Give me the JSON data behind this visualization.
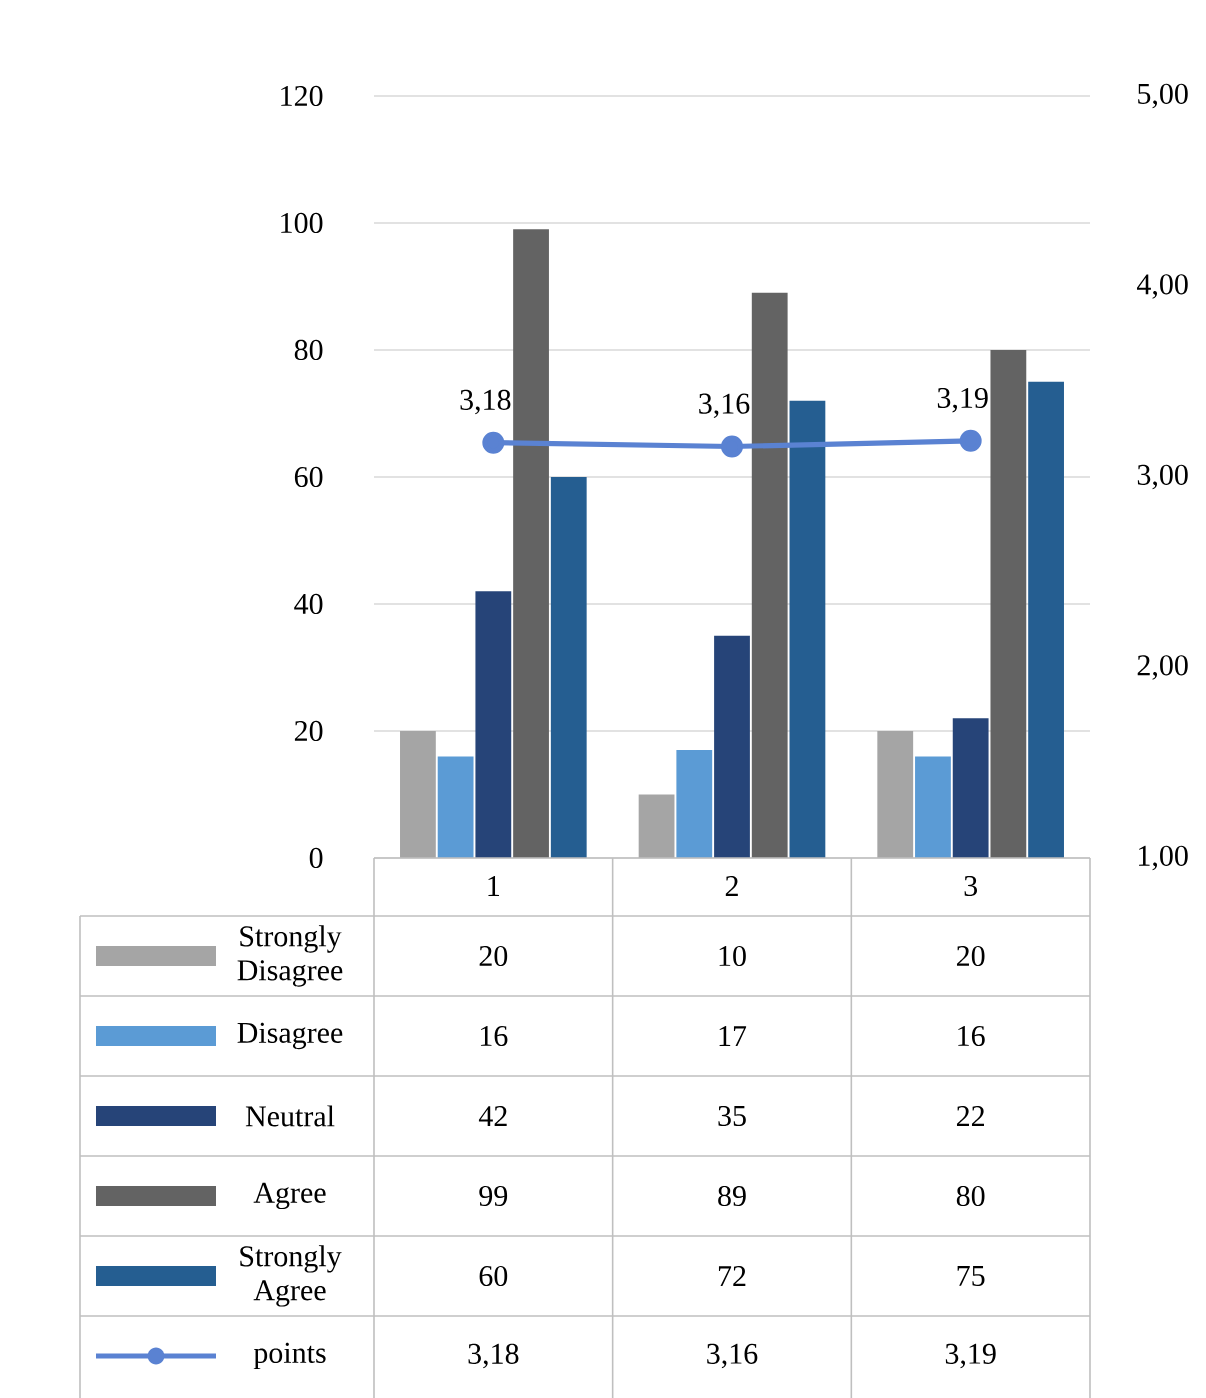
{
  "chart_data": {
    "type": "bar",
    "categories": [
      "1",
      "2",
      "3"
    ],
    "series": [
      {
        "name": "Strongly Disagree",
        "color": "#a5a5a5",
        "values": [
          20,
          10,
          20
        ],
        "value_labels": [
          "20",
          "10",
          "20"
        ]
      },
      {
        "name": "Disagree",
        "color": "#5b9bd5",
        "values": [
          16,
          17,
          16
        ],
        "value_labels": [
          "16",
          "17",
          "16"
        ]
      },
      {
        "name": "Neutral",
        "color": "#264478",
        "values": [
          42,
          35,
          22
        ],
        "value_labels": [
          "42",
          "35",
          "22"
        ]
      },
      {
        "name": "Agree",
        "color": "#636363",
        "values": [
          99,
          89,
          80
        ],
        "value_labels": [
          "99",
          "89",
          "80"
        ]
      },
      {
        "name": "Strongly Agree",
        "color": "#255e91",
        "values": [
          60,
          72,
          75
        ],
        "value_labels": [
          "60",
          "72",
          "75"
        ]
      },
      {
        "name": "points",
        "type": "line",
        "axis": "y2",
        "color": "#5a82d2",
        "marker": "circle",
        "line_style": "solid",
        "values": [
          3.18,
          3.16,
          3.19
        ],
        "value_labels": [
          "3,18",
          "3,16",
          "3,19"
        ]
      }
    ],
    "ylim": [
      0,
      120
    ],
    "yticks": [
      0,
      20,
      40,
      60,
      80,
      100,
      120
    ],
    "y2lim": [
      1,
      5
    ],
    "y2ticks": [
      {
        "value": 1,
        "label": "1,00"
      },
      {
        "value": 2,
        "label": "2,00"
      },
      {
        "value": 3,
        "label": "3,00"
      },
      {
        "value": 4,
        "label": "4,00"
      },
      {
        "value": 5,
        "label": "5,00"
      }
    ],
    "grid": "y",
    "legend": "bottom"
  }
}
